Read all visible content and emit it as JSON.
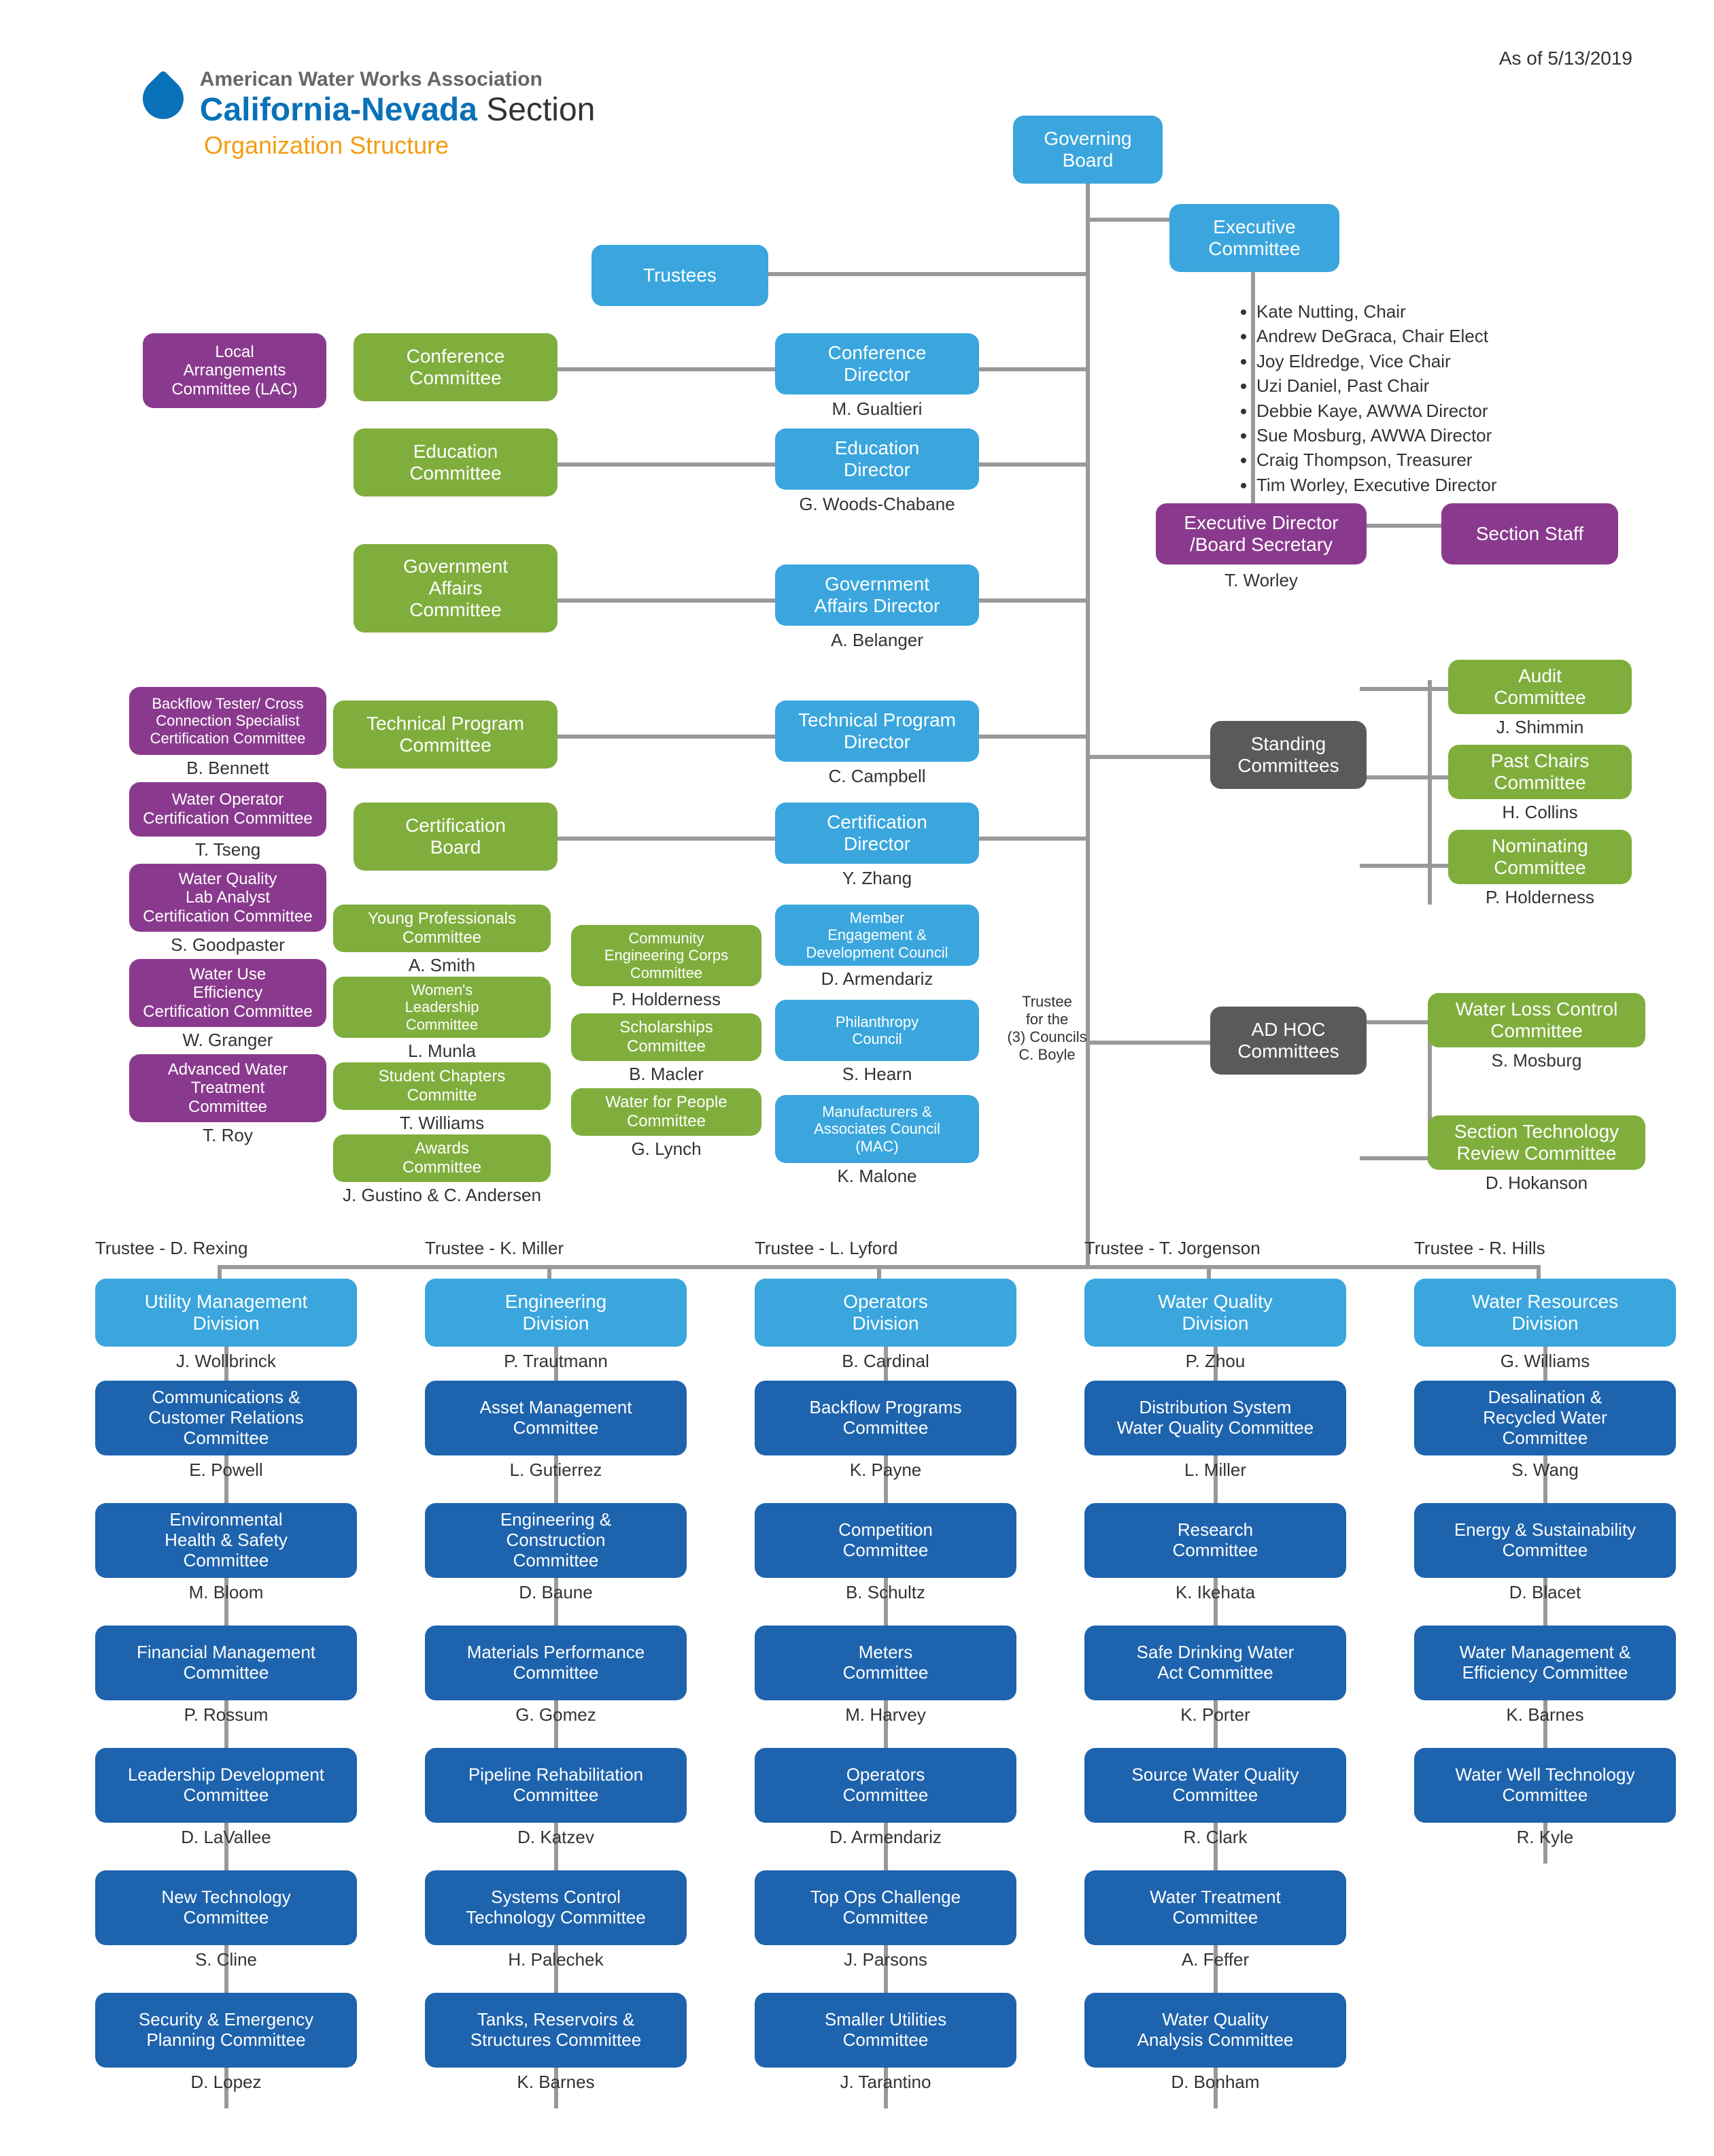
{
  "meta": {
    "as_of": "As of 5/13/2019"
  },
  "logo": {
    "line1": "American Water Works Association",
    "line2a": "California-Nevada",
    "line2b": "Section",
    "subtitle": "Organization Structure"
  },
  "colors": {
    "light_blue": "#3aa6dd",
    "dark_blue": "#1e63ad",
    "green": "#7fae3d",
    "purple": "#8a3a8e",
    "gray": "#5a5a5a",
    "text": "#333333",
    "line": "#9a9a9a"
  },
  "top": {
    "governing_board": "Governing\nBoard",
    "executive_committee": "Executive\nCommittee",
    "trustees": "Trustees",
    "exec_members": [
      "Kate Nutting, Chair",
      "Andrew DeGraca, Chair Elect",
      "Joy Eldredge, Vice Chair",
      "Uzi Daniel, Past Chair",
      "Debbie Kaye, AWWA Director",
      "Sue Mosburg, AWWA Director",
      "Craig Thompson, Treasurer",
      "Tim Worley, Executive Director"
    ],
    "exec_dir": {
      "label": "Executive Director\n/Board Secretary",
      "person": "T. Worley"
    },
    "section_staff": "Section Staff"
  },
  "directors": [
    {
      "committee": "Conference\nCommittee",
      "dir": "Conference\nDirector",
      "person": "M. Gualtieri",
      "left_extra": {
        "label": "Local\nArrangements\nCommittee (LAC)"
      }
    },
    {
      "committee": "Education\nCommittee",
      "dir": "Education\nDirector",
      "person": "G. Woods-Chabane"
    },
    {
      "committee": "Government\nAffairs\nCommittee",
      "dir": "Government\nAffairs Director",
      "person": "A. Belanger"
    },
    {
      "committee": "Technical Program\nCommittee",
      "dir": "Technical Program\nDirector",
      "person": "C. Campbell"
    },
    {
      "committee": "Certification\nBoard",
      "dir": "Certification\nDirector",
      "person": "Y. Zhang"
    }
  ],
  "cert_left": [
    {
      "label": "Backflow Tester/ Cross\nConnection   Specialist\nCertification Committee",
      "person": "B. Bennett"
    },
    {
      "label": "Water Operator\nCertification Committee",
      "person": "T. Tseng"
    },
    {
      "label": "Water Quality\nLab Analyst\nCertification Committee",
      "person": "S. Goodpaster"
    },
    {
      "label": "Water Use\nEfficiency\nCertification Committee",
      "person": "W. Granger"
    },
    {
      "label": "Advanced Water\nTreatment\nCommittee",
      "person": "T. Roy"
    }
  ],
  "mid_green": [
    {
      "label": "Young Professionals\nCommittee",
      "person": "A. Smith"
    },
    {
      "label": "Women's\nLeadership\nCommittee",
      "person": "L. Munla"
    },
    {
      "label": "Student Chapters\nCommitte",
      "person": "T. Williams"
    },
    {
      "label": "Awards\nCommittee",
      "person": "J. Gustino & C. Andersen"
    }
  ],
  "mid_green2": [
    {
      "label": "Community\nEngineering Corps\nCommittee",
      "person": "P. Holderness"
    },
    {
      "label": "Scholarships\nCommittee",
      "person": "B. Macler"
    },
    {
      "label": "Water for People\nCommittee",
      "person": "G. Lynch"
    }
  ],
  "councils": [
    {
      "label": "Member\nEngagement &\nDevelopment Council",
      "person": "D. Armendariz"
    },
    {
      "label": "Philanthropy\nCouncil",
      "person": "S. Hearn"
    },
    {
      "label": "Manufacturers &\nAssociates Council\n(MAC)",
      "person": "K. Malone"
    }
  ],
  "council_note": "Trustee\nfor the\n(3) Councils\nC. Boyle",
  "standing": {
    "header": "Standing\nCommittees",
    "items": [
      {
        "label": "Audit\nCommittee",
        "person": "J. Shimmin"
      },
      {
        "label": "Past Chairs\nCommittee",
        "person": "H. Collins"
      },
      {
        "label": "Nominating\nCommittee",
        "person": "P. Holderness"
      }
    ]
  },
  "adhoc": {
    "header": "AD HOC\nCommittees",
    "items": [
      {
        "label": "Water Loss Control\nCommittee",
        "person": "S. Mosburg"
      },
      {
        "label": "Section Technology\nReview Committee",
        "person": "D. Hokanson"
      }
    ]
  },
  "divisions": [
    {
      "trustee": "Trustee  -  D. Rexing",
      "title": "Utility Management\nDivision",
      "person": "J. Wollbrinck",
      "committees": [
        {
          "label": "Communications &\nCustomer Relations\nCommittee",
          "person": "E. Powell"
        },
        {
          "label": "Environmental\nHealth & Safety\nCommittee",
          "person": "M. Bloom"
        },
        {
          "label": "Financial Management\nCommittee",
          "person": "P. Rossum"
        },
        {
          "label": "Leadership Development\nCommittee",
          "person": "D. LaVallee"
        },
        {
          "label": "New Technology\nCommittee",
          "person": "S. Cline"
        },
        {
          "label": "Security & Emergency\nPlanning Committee",
          "person": "D. Lopez"
        }
      ]
    },
    {
      "trustee": "Trustee  -  K. Miller",
      "title": "Engineering\nDivision",
      "person": "P. Trautmann",
      "committees": [
        {
          "label": "Asset Management\nCommittee",
          "person": "L. Gutierrez"
        },
        {
          "label": "Engineering &\nConstruction\nCommittee",
          "person": "D. Baune"
        },
        {
          "label": "Materials Performance\nCommittee",
          "person": "G. Gomez"
        },
        {
          "label": "Pipeline Rehabilitation\nCommittee",
          "person": "D. Katzev"
        },
        {
          "label": "Systems Control\nTechnology Committee",
          "person": "H. Palechek"
        },
        {
          "label": "Tanks, Reservoirs &\nStructures Committee",
          "person": "K. Barnes"
        }
      ]
    },
    {
      "trustee": "Trustee  -  L. Lyford",
      "title": "Operators\nDivision",
      "person": "B. Cardinal",
      "committees": [
        {
          "label": "Backflow Programs\nCommittee",
          "person": "K. Payne"
        },
        {
          "label": "Competition\nCommittee",
          "person": "B. Schultz"
        },
        {
          "label": "Meters\nCommittee",
          "person": "M. Harvey"
        },
        {
          "label": "Operators\nCommittee",
          "person": "D. Armendariz"
        },
        {
          "label": "Top Ops Challenge\nCommittee",
          "person": "J. Parsons"
        },
        {
          "label": "Smaller Utilities\nCommittee",
          "person": "J. Tarantino"
        }
      ]
    },
    {
      "trustee": "Trustee  -  T. Jorgenson",
      "title": "Water Quality\nDivision",
      "person": "P. Zhou",
      "committees": [
        {
          "label": "Distribution System\nWater Quality Committee",
          "person": "L. Miller"
        },
        {
          "label": "Research\nCommittee",
          "person": "K. Ikehata"
        },
        {
          "label": "Safe Drinking Water\nAct Committee",
          "person": "K. Porter"
        },
        {
          "label": "Source Water Quality\nCommittee",
          "person": "R. Clark"
        },
        {
          "label": "Water Treatment\nCommittee",
          "person": "A. Feffer"
        },
        {
          "label": "Water Quality\nAnalysis Committee",
          "person": "D. Bonham"
        }
      ]
    },
    {
      "trustee": "Trustee  -  R. Hills",
      "title": "Water Resources\nDivision",
      "person": "G. Williams",
      "committees": [
        {
          "label": "Desalination &\nRecycled Water\nCommittee",
          "person": "S. Wang"
        },
        {
          "label": "Energy & Sustainability\nCommittee",
          "person": "D. Blacet"
        },
        {
          "label": "Water Management &\nEfficiency Committee",
          "person": "K. Barnes"
        },
        {
          "label": "Water Well Technology\nCommittee",
          "person": "R. Kyle"
        }
      ]
    }
  ],
  "layout": {
    "node_sizes": {
      "std_w": 360,
      "std_h": 100,
      "tall_h": 130,
      "small_w": 310
    },
    "font_sizes": {
      "node": 28,
      "caption": 26,
      "small_node": 22
    }
  }
}
